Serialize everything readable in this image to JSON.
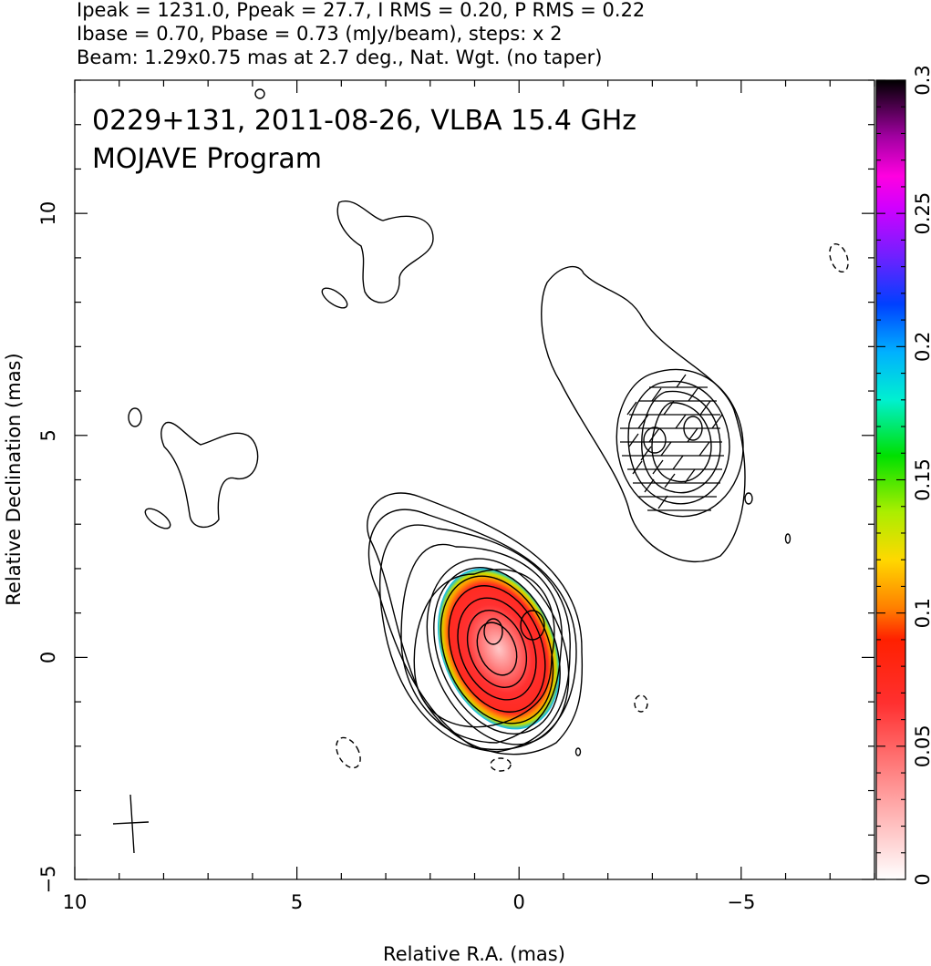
{
  "header": {
    "line1": "Ipeak = 1231.0, Ppeak = 27.7, I RMS = 0.20, P RMS = 0.22",
    "line2": "Ibase = 0.70, Pbase = 0.73 (mJy/beam), steps: x 2",
    "line3": "Beam: 1.29x0.75 mas at 2.7 deg., Nat. Wgt. (no taper)"
  },
  "chart_data": {
    "type": "heatmap",
    "annotation_line1": "0229+131, 2011-08-26, VLBA 15.4 GHz",
    "annotation_line2": "MOJAVE Program",
    "xlabel": "Relative R.A. (mas)",
    "ylabel": "Relative Declination (mas)",
    "xlim": [
      10,
      -8
    ],
    "ylim": [
      -5,
      13
    ],
    "x_ticks": [
      10,
      5,
      0,
      -5
    ],
    "x_tick_labels": [
      "10",
      "5",
      "0",
      "−5"
    ],
    "y_ticks": [
      -5,
      0,
      5,
      10
    ],
    "y_tick_labels": [
      "−5",
      "0",
      "5",
      "10"
    ],
    "colorbar": {
      "range": [
        0,
        0.3
      ],
      "ticks": [
        0,
        0.05,
        0.1,
        0.15,
        0.2,
        0.25,
        0.3
      ],
      "tick_labels": [
        "0",
        "0.05",
        "0.1",
        "0.15",
        "0.2",
        "0.25",
        "0.3"
      ]
    },
    "core": {
      "x": 0.3,
      "y": 0.2
    },
    "jet_component": {
      "x": -3.2,
      "y": 5.0
    },
    "beam_symbol": {
      "x": 8.7,
      "y": -3.8
    }
  },
  "colors": {
    "core_fill": "#ff2a2a",
    "contour": "#000000"
  }
}
